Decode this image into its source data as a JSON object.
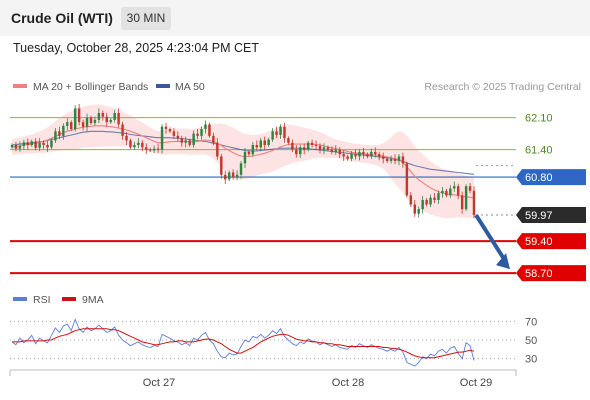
{
  "header": {
    "instrument": "Crude Oil (WTI)",
    "timeframe": "30 MIN",
    "datetime": "Tuesday, October 28, 2025 4:23:04 PM CET"
  },
  "legend": {
    "ma20_label": "MA 20 + Bollinger Bands",
    "ma50_label": "MA 50",
    "credit": "Research © 2025 Trading Central",
    "rsi_label": "RSI",
    "rsi_ma_label": "9MA"
  },
  "colors": {
    "up": "#2e8540",
    "down": "#c0392b",
    "ma20": "#f08080",
    "bollinger_fill": "#fde3e3",
    "ma50": "#3b5998",
    "resistance": "#7cbf3a",
    "pivot": "#2f66c4",
    "support": "#e00000",
    "last": "#2b2b2b",
    "rsi": "#5b7fd6",
    "rsi_ma": "#d01010"
  },
  "chart_data": [
    {
      "type": "candlestick",
      "ylim": [
        58.55,
        62.55
      ],
      "xlabels": [
        "Oct 27",
        "Oct 28",
        "Oct 29"
      ],
      "levels": [
        {
          "value": 62.1,
          "label": "62.10",
          "kind": "resistance"
        },
        {
          "value": 61.4,
          "label": "61.40",
          "kind": "resistance"
        },
        {
          "value": 60.8,
          "label": "60.80",
          "kind": "pivot"
        },
        {
          "value": 59.97,
          "label": "59.97",
          "kind": "last"
        },
        {
          "value": 59.4,
          "label": "59.40",
          "kind": "support"
        },
        {
          "value": 58.7,
          "label": "58.70",
          "kind": "support"
        }
      ],
      "close": [
        61.5,
        61.42,
        61.48,
        61.56,
        61.5,
        61.58,
        61.44,
        61.55,
        61.5,
        61.45,
        61.6,
        61.8,
        61.7,
        61.92,
        62.0,
        61.85,
        62.3,
        62.0,
        61.9,
        62.1,
        61.98,
        62.05,
        62.2,
        62.12,
        62.0,
        62.05,
        62.2,
        61.95,
        61.7,
        61.6,
        61.45,
        61.5,
        61.55,
        61.45,
        61.4,
        61.38,
        61.42,
        61.4,
        61.9,
        61.85,
        61.8,
        61.7,
        61.65,
        61.55,
        61.6,
        61.5,
        61.75,
        61.7,
        61.85,
        61.95,
        61.7,
        61.55,
        61.25,
        60.85,
        60.75,
        60.9,
        60.8,
        60.85,
        61.1,
        61.35,
        61.3,
        61.5,
        61.45,
        61.6,
        61.5,
        61.62,
        61.8,
        61.72,
        61.9,
        61.65,
        61.55,
        61.4,
        61.3,
        61.45,
        61.4,
        61.55,
        61.5,
        61.48,
        61.4,
        61.45,
        61.4,
        61.35,
        61.4,
        61.3,
        61.25,
        61.2,
        61.3,
        61.25,
        61.35,
        61.3,
        61.25,
        61.35,
        61.3,
        61.25,
        61.2,
        61.15,
        61.2,
        61.15,
        61.25,
        61.1,
        60.4,
        60.2,
        60.0,
        60.1,
        60.3,
        60.2,
        60.35,
        60.3,
        60.45,
        60.5,
        60.4,
        60.55,
        60.6,
        60.4,
        60.1,
        60.6,
        60.5,
        59.97
      ],
      "ma20": [
        61.45,
        61.47,
        61.48,
        61.5,
        61.51,
        61.52,
        61.54,
        61.56,
        61.58,
        61.61,
        61.65,
        61.69,
        61.73,
        61.77,
        61.8,
        61.82,
        61.85,
        61.87,
        61.89,
        61.9,
        61.91,
        61.92,
        61.92,
        61.92,
        61.91,
        61.9,
        61.89,
        61.87,
        61.85,
        61.83,
        61.8,
        61.77,
        61.74,
        61.7,
        61.66,
        61.62,
        61.58,
        61.55,
        61.55,
        61.56,
        61.57,
        61.58,
        61.58,
        61.58,
        61.58,
        61.57,
        61.57,
        61.58,
        61.6,
        61.61,
        61.6,
        61.58,
        61.54,
        61.49,
        61.43,
        61.38,
        61.33,
        61.29,
        61.26,
        61.25,
        61.25,
        61.26,
        61.28,
        61.3,
        61.32,
        61.35,
        61.38,
        61.42,
        61.46,
        61.49,
        61.51,
        61.52,
        61.52,
        61.52,
        61.52,
        61.52,
        61.52,
        61.51,
        61.5,
        61.48,
        61.46,
        61.44,
        61.42,
        61.4,
        61.38,
        61.36,
        61.34,
        61.33,
        61.32,
        61.31,
        61.3,
        61.29,
        61.28,
        61.27,
        61.26,
        61.24,
        61.22,
        61.2,
        61.18,
        61.12,
        61.02,
        60.92,
        60.82,
        60.74,
        60.68,
        60.62,
        60.56,
        60.52,
        60.48,
        60.45,
        60.43,
        60.42,
        60.41,
        60.4,
        60.38,
        60.37,
        60.36,
        60.34
      ],
      "ma50": [
        61.5,
        61.51,
        61.52,
        61.53,
        61.54,
        61.55,
        61.56,
        61.57,
        61.58,
        61.6,
        61.62,
        61.64,
        61.66,
        61.68,
        61.7,
        61.72,
        61.74,
        61.76,
        61.78,
        61.79,
        61.8,
        61.8,
        61.8,
        61.8,
        61.79,
        61.79,
        61.78,
        61.77,
        61.76,
        61.75,
        61.73,
        61.72,
        61.71,
        61.7,
        61.69,
        61.68,
        61.67,
        61.66,
        61.66,
        61.66,
        61.66,
        61.65,
        61.65,
        61.64,
        61.63,
        61.62,
        61.61,
        61.6,
        61.59,
        61.58,
        61.56,
        61.54,
        61.52,
        61.5,
        61.48,
        61.46,
        61.44,
        61.42,
        61.4,
        61.38,
        61.37,
        61.37,
        61.37,
        61.38,
        61.39,
        61.4,
        61.41,
        61.42,
        61.43,
        61.43,
        61.43,
        61.43,
        61.43,
        61.43,
        61.42,
        61.42,
        61.41,
        61.4,
        61.39,
        61.38,
        61.37,
        61.36,
        61.35,
        61.34,
        61.33,
        61.32,
        61.31,
        61.3,
        61.29,
        61.28,
        61.27,
        61.26,
        61.25,
        61.24,
        61.23,
        61.22,
        61.21,
        61.19,
        61.17,
        61.14,
        61.11,
        61.08,
        61.05,
        61.03,
        61.01,
        60.99,
        60.97,
        60.96,
        60.95,
        60.94,
        60.93,
        60.92,
        60.91,
        60.9,
        60.89,
        60.88,
        60.87,
        60.86
      ],
      "bb_width": [
        0.18,
        0.18,
        0.18,
        0.19,
        0.2,
        0.21,
        0.22,
        0.24,
        0.26,
        0.28,
        0.3,
        0.33,
        0.36,
        0.38,
        0.4,
        0.42,
        0.44,
        0.45,
        0.45,
        0.46,
        0.46,
        0.46,
        0.46,
        0.45,
        0.44,
        0.43,
        0.42,
        0.4,
        0.38,
        0.36,
        0.34,
        0.32,
        0.3,
        0.29,
        0.28,
        0.27,
        0.26,
        0.25,
        0.26,
        0.27,
        0.28,
        0.28,
        0.28,
        0.28,
        0.28,
        0.28,
        0.28,
        0.29,
        0.3,
        0.32,
        0.34,
        0.38,
        0.42,
        0.48,
        0.52,
        0.54,
        0.55,
        0.54,
        0.52,
        0.5,
        0.48,
        0.46,
        0.45,
        0.44,
        0.44,
        0.45,
        0.46,
        0.46,
        0.46,
        0.45,
        0.44,
        0.42,
        0.4,
        0.38,
        0.36,
        0.34,
        0.32,
        0.3,
        0.28,
        0.26,
        0.24,
        0.22,
        0.2,
        0.2,
        0.2,
        0.2,
        0.2,
        0.2,
        0.2,
        0.2,
        0.2,
        0.2,
        0.22,
        0.24,
        0.28,
        0.35,
        0.45,
        0.55,
        0.62,
        0.66,
        0.68,
        0.68,
        0.66,
        0.64,
        0.62,
        0.6,
        0.58,
        0.56,
        0.55,
        0.54,
        0.53,
        0.52,
        0.5,
        0.48,
        0.47,
        0.46,
        0.45,
        0.44
      ],
      "forecast": {
        "from": 59.97,
        "to": 58.7
      }
    },
    {
      "type": "line",
      "name": "RSI",
      "ylim": [
        20,
        80
      ],
      "ticks": [
        70,
        50,
        30
      ],
      "rsi": [
        48,
        45,
        52,
        47,
        50,
        55,
        46,
        52,
        49,
        47,
        55,
        63,
        58,
        65,
        67,
        60,
        72,
        62,
        58,
        64,
        60,
        62,
        66,
        62,
        58,
        60,
        64,
        55,
        50,
        47,
        44,
        46,
        48,
        45,
        43,
        42,
        44,
        43,
        56,
        54,
        52,
        49,
        48,
        45,
        47,
        44,
        52,
        50,
        55,
        58,
        50,
        46,
        38,
        32,
        31,
        36,
        34,
        35,
        43,
        50,
        48,
        54,
        52,
        56,
        52,
        55,
        60,
        57,
        62,
        54,
        50,
        46,
        44,
        48,
        46,
        51,
        49,
        48,
        45,
        47,
        45,
        43,
        45,
        42,
        41,
        40,
        44,
        42,
        46,
        44,
        42,
        45,
        43,
        41,
        40,
        38,
        40,
        38,
        42,
        37,
        26,
        24,
        22,
        26,
        32,
        30,
        35,
        33,
        38,
        40,
        36,
        41,
        43,
        36,
        30,
        47,
        44,
        28
      ],
      "rsi_ma": [
        48,
        48,
        48,
        49,
        49,
        49,
        49,
        49,
        49,
        50,
        50,
        52,
        54,
        55,
        56,
        58,
        60,
        61,
        62,
        62,
        62,
        62,
        62,
        62,
        62,
        61,
        61,
        60,
        58,
        56,
        54,
        52,
        50,
        48,
        47,
        46,
        45,
        45,
        46,
        47,
        48,
        48,
        49,
        49,
        48,
        48,
        48,
        49,
        50,
        51,
        51,
        50,
        48,
        46,
        43,
        40,
        38,
        36,
        36,
        38,
        40,
        42,
        45,
        48,
        50,
        52,
        54,
        55,
        56,
        56,
        55,
        53,
        51,
        50,
        49,
        49,
        48,
        48,
        47,
        47,
        46,
        46,
        45,
        45,
        44,
        43,
        43,
        43,
        43,
        43,
        43,
        43,
        43,
        43,
        42,
        42,
        41,
        41,
        40,
        39,
        37,
        35,
        33,
        32,
        31,
        31,
        31,
        31,
        32,
        33,
        34,
        35,
        36,
        37,
        37,
        38,
        39,
        38
      ]
    }
  ]
}
